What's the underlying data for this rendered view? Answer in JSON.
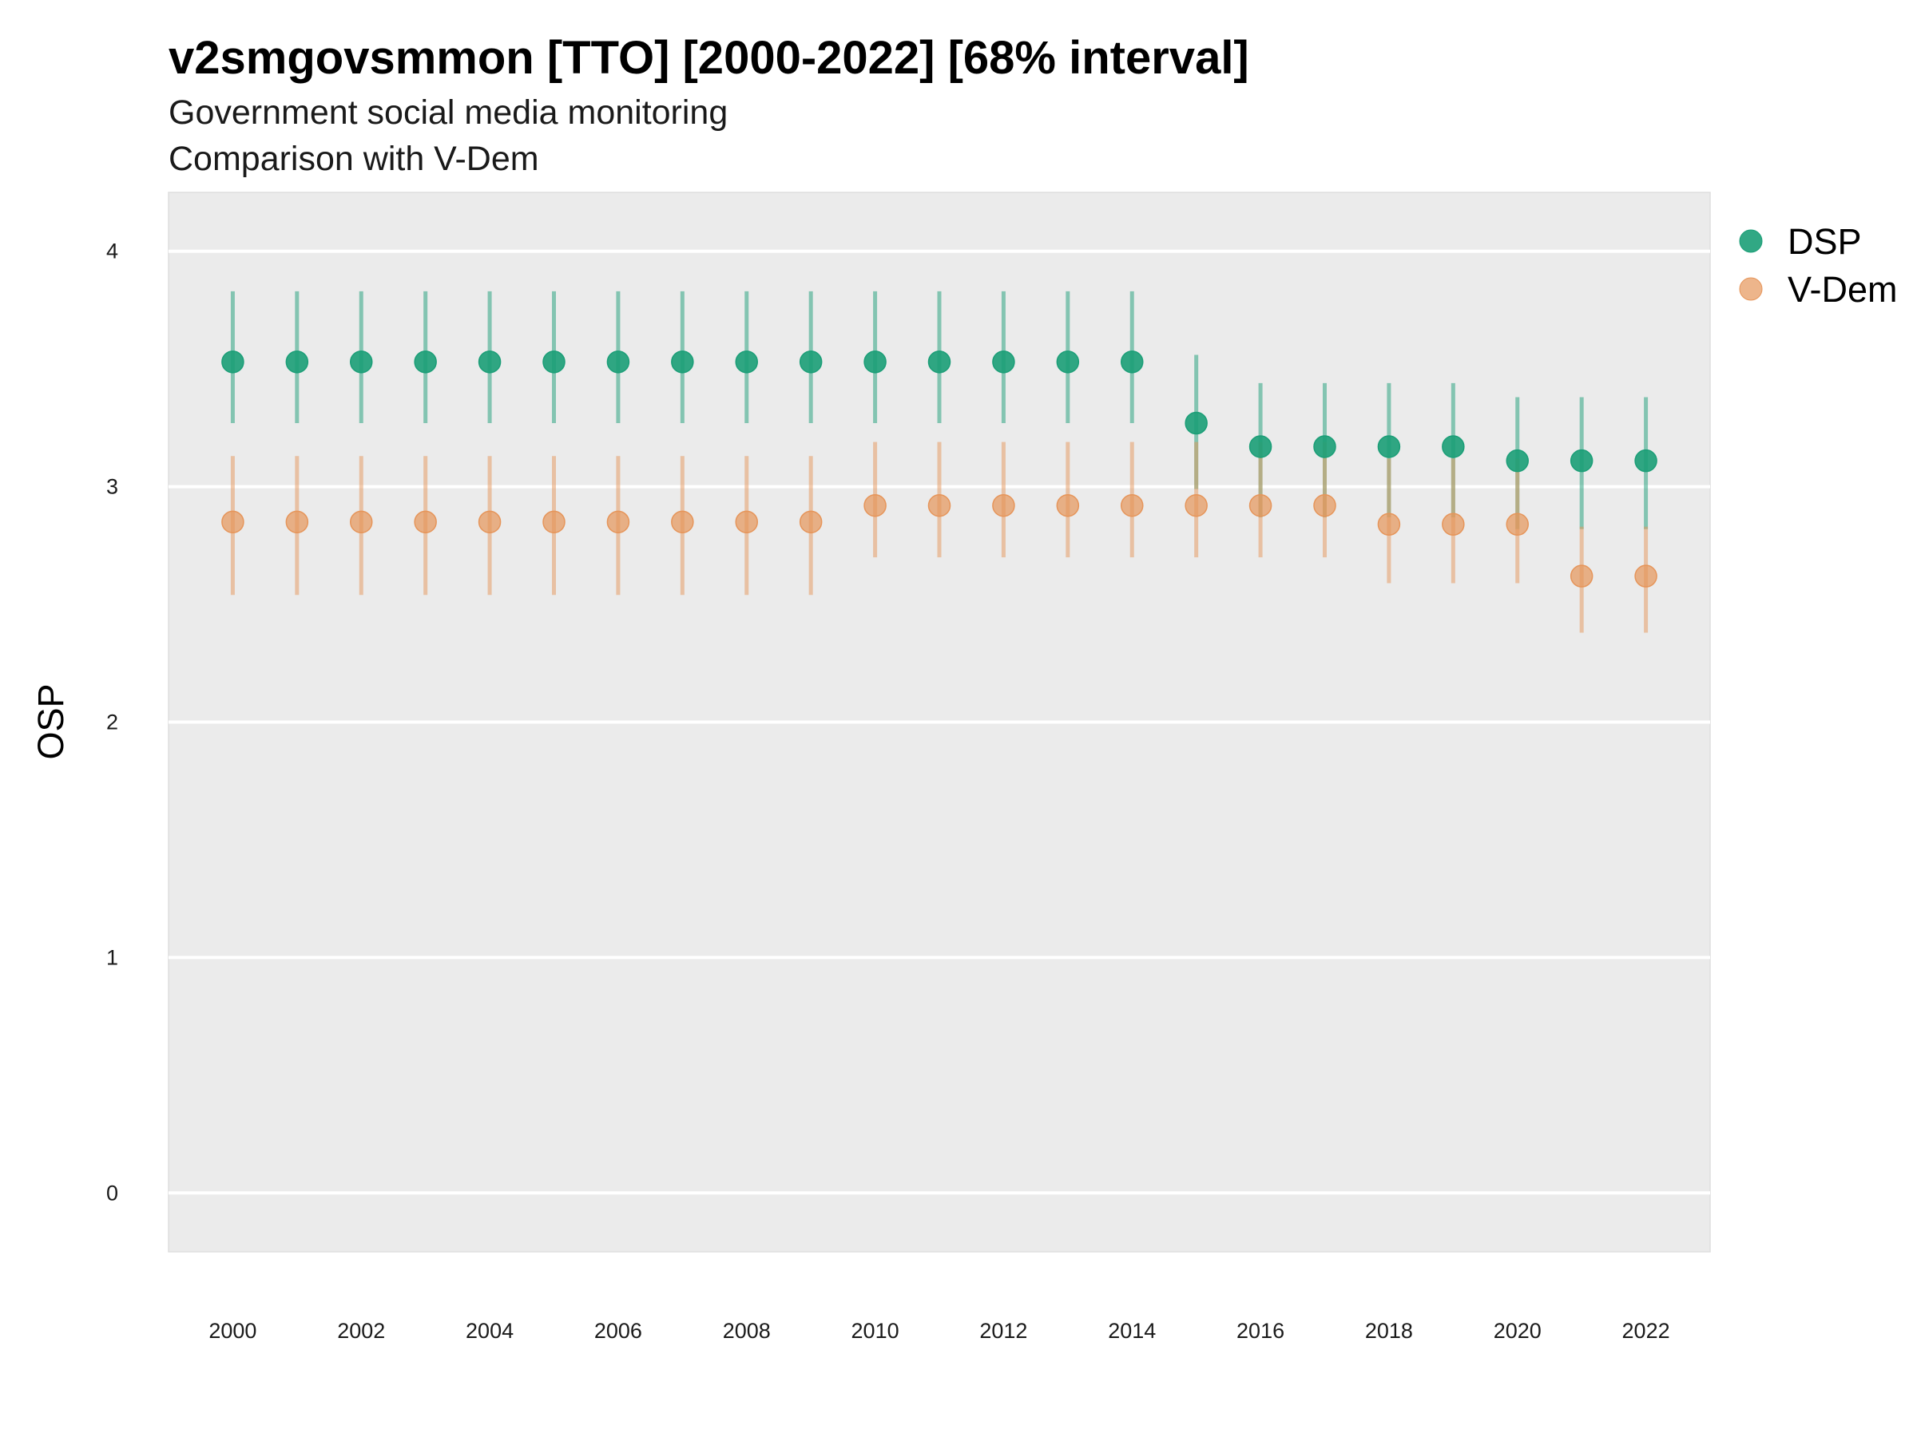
{
  "chart_data": {
    "type": "scatter",
    "title": "v2smgovsmmon [TTO] [2000-2022] [68% interval]",
    "subtitle": "Government social media monitoring",
    "caption": "Comparison with V-Dem",
    "xlabel": "",
    "ylabel": "OSP",
    "xlim": [
      1999,
      2023
    ],
    "ylim": [
      -0.25,
      4.25
    ],
    "x_ticks": [
      2000,
      2002,
      2004,
      2006,
      2008,
      2010,
      2012,
      2014,
      2016,
      2018,
      2020,
      2022
    ],
    "y_ticks": [
      0,
      1,
      2,
      3,
      4
    ],
    "grid": true,
    "legend_position": "right",
    "x": [
      2000,
      2001,
      2002,
      2003,
      2004,
      2005,
      2006,
      2007,
      2008,
      2009,
      2010,
      2011,
      2012,
      2013,
      2014,
      2015,
      2016,
      2017,
      2018,
      2019,
      2020,
      2021,
      2022
    ],
    "series": [
      {
        "name": "DSP",
        "color": "#1b9e77",
        "values": [
          3.53,
          3.53,
          3.53,
          3.53,
          3.53,
          3.53,
          3.53,
          3.53,
          3.53,
          3.53,
          3.53,
          3.53,
          3.53,
          3.53,
          3.53,
          3.27,
          3.17,
          3.17,
          3.17,
          3.17,
          3.11,
          3.11,
          3.11
        ],
        "lower": [
          3.27,
          3.27,
          3.27,
          3.27,
          3.27,
          3.27,
          3.27,
          3.27,
          3.27,
          3.27,
          3.27,
          3.27,
          3.27,
          3.27,
          3.27,
          2.99,
          2.87,
          2.87,
          2.87,
          2.87,
          2.82,
          2.82,
          2.82
        ],
        "upper": [
          3.83,
          3.83,
          3.83,
          3.83,
          3.83,
          3.83,
          3.83,
          3.83,
          3.83,
          3.83,
          3.83,
          3.83,
          3.83,
          3.83,
          3.83,
          3.56,
          3.44,
          3.44,
          3.44,
          3.44,
          3.38,
          3.38,
          3.38
        ]
      },
      {
        "name": "V-Dem",
        "color": "#e6955a",
        "values": [
          2.85,
          2.85,
          2.85,
          2.85,
          2.85,
          2.85,
          2.85,
          2.85,
          2.85,
          2.85,
          2.92,
          2.92,
          2.92,
          2.92,
          2.92,
          2.92,
          2.92,
          2.92,
          2.84,
          2.84,
          2.84,
          2.62,
          2.62
        ],
        "lower": [
          2.54,
          2.54,
          2.54,
          2.54,
          2.54,
          2.54,
          2.54,
          2.54,
          2.54,
          2.54,
          2.7,
          2.7,
          2.7,
          2.7,
          2.7,
          2.7,
          2.7,
          2.7,
          2.59,
          2.59,
          2.59,
          2.38,
          2.38
        ],
        "upper": [
          3.13,
          3.13,
          3.13,
          3.13,
          3.13,
          3.13,
          3.13,
          3.13,
          3.13,
          3.13,
          3.19,
          3.19,
          3.19,
          3.19,
          3.19,
          3.19,
          3.19,
          3.19,
          3.12,
          3.12,
          3.12,
          2.83,
          2.83
        ]
      }
    ]
  }
}
